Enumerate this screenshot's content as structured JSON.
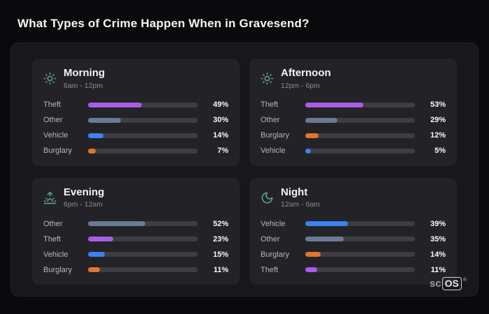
{
  "title": "What Types of Crime Happen When in Gravesend?",
  "colors": {
    "theft": "#a85ce8",
    "other": "#6b7a93",
    "vehicle": "#3b82f6",
    "burglary": "#e2762d",
    "icon": "#5fa08d"
  },
  "cards": [
    {
      "title": "Morning",
      "subtitle": "6am - 12pm",
      "icon": "sun-icon",
      "rows": [
        {
          "label": "Theft",
          "pct": 49,
          "pct_label": "49%"
        },
        {
          "label": "Other",
          "pct": 30,
          "pct_label": "30%"
        },
        {
          "label": "Vehicle",
          "pct": 14,
          "pct_label": "14%"
        },
        {
          "label": "Burglary",
          "pct": 7,
          "pct_label": "7%"
        }
      ]
    },
    {
      "title": "Afternoon",
      "subtitle": "12pm - 6pm",
      "icon": "sun-icon",
      "rows": [
        {
          "label": "Theft",
          "pct": 53,
          "pct_label": "53%"
        },
        {
          "label": "Other",
          "pct": 29,
          "pct_label": "29%"
        },
        {
          "label": "Burglary",
          "pct": 12,
          "pct_label": "12%"
        },
        {
          "label": "Vehicle",
          "pct": 5,
          "pct_label": "5%"
        }
      ]
    },
    {
      "title": "Evening",
      "subtitle": "6pm - 12am",
      "icon": "sunset-icon",
      "rows": [
        {
          "label": "Other",
          "pct": 52,
          "pct_label": "52%"
        },
        {
          "label": "Theft",
          "pct": 23,
          "pct_label": "23%"
        },
        {
          "label": "Vehicle",
          "pct": 15,
          "pct_label": "15%"
        },
        {
          "label": "Burglary",
          "pct": 11,
          "pct_label": "11%"
        }
      ]
    },
    {
      "title": "Night",
      "subtitle": "12am - 6am",
      "icon": "moon-icon",
      "rows": [
        {
          "label": "Vehicle",
          "pct": 39,
          "pct_label": "39%"
        },
        {
          "label": "Other",
          "pct": 35,
          "pct_label": "35%"
        },
        {
          "label": "Burglary",
          "pct": 14,
          "pct_label": "14%"
        },
        {
          "label": "Theft",
          "pct": 11,
          "pct_label": "11%"
        }
      ]
    }
  ],
  "logo": {
    "prefix": "sc",
    "box": "OS",
    "reg": "®"
  },
  "chart_data": [
    {
      "type": "bar",
      "orientation": "horizontal",
      "title": "Morning",
      "subtitle": "6am - 12pm",
      "categories": [
        "Theft",
        "Other",
        "Vehicle",
        "Burglary"
      ],
      "values": [
        49,
        30,
        14,
        7
      ],
      "unit": "%",
      "xlim": [
        0,
        100
      ],
      "bar_colors": [
        "#a85ce8",
        "#6b7a93",
        "#3b82f6",
        "#e2762d"
      ]
    },
    {
      "type": "bar",
      "orientation": "horizontal",
      "title": "Afternoon",
      "subtitle": "12pm - 6pm",
      "categories": [
        "Theft",
        "Other",
        "Burglary",
        "Vehicle"
      ],
      "values": [
        53,
        29,
        12,
        5
      ],
      "unit": "%",
      "xlim": [
        0,
        100
      ],
      "bar_colors": [
        "#a85ce8",
        "#6b7a93",
        "#e2762d",
        "#3b82f6"
      ]
    },
    {
      "type": "bar",
      "orientation": "horizontal",
      "title": "Evening",
      "subtitle": "6pm - 12am",
      "categories": [
        "Other",
        "Theft",
        "Vehicle",
        "Burglary"
      ],
      "values": [
        52,
        23,
        15,
        11
      ],
      "unit": "%",
      "xlim": [
        0,
        100
      ],
      "bar_colors": [
        "#6b7a93",
        "#a85ce8",
        "#3b82f6",
        "#e2762d"
      ]
    },
    {
      "type": "bar",
      "orientation": "horizontal",
      "title": "Night",
      "subtitle": "12am - 6am",
      "categories": [
        "Vehicle",
        "Other",
        "Burglary",
        "Theft"
      ],
      "values": [
        39,
        35,
        14,
        11
      ],
      "unit": "%",
      "xlim": [
        0,
        100
      ],
      "bar_colors": [
        "#3b82f6",
        "#6b7a93",
        "#e2762d",
        "#a85ce8"
      ]
    }
  ]
}
